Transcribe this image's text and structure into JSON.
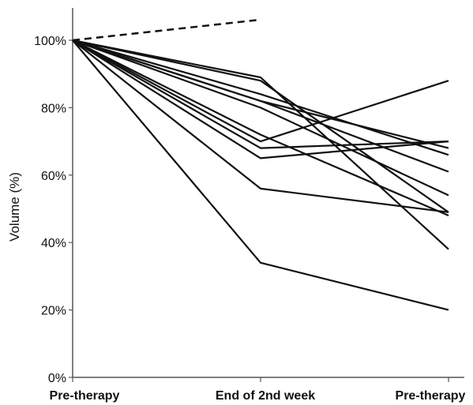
{
  "chart_data": {
    "type": "line",
    "ylabel": "Volume (%)",
    "xlabel": "",
    "categories": [
      "Pre-therapy",
      "End of 2nd week",
      "Pre-therapy"
    ],
    "ylim": [
      0,
      110
    ],
    "yticks": [
      0,
      20,
      40,
      60,
      80,
      100
    ],
    "ytick_labels": [
      "0%",
      "20%",
      "40%",
      "60%",
      "80%",
      "100%"
    ],
    "grid": false,
    "legend": "none",
    "line_color": "#111111",
    "series": [
      {
        "values": [
          100,
          89,
          38
        ]
      },
      {
        "values": [
          100,
          88,
          49
        ]
      },
      {
        "values": [
          100,
          84,
          66
        ]
      },
      {
        "values": [
          100,
          82,
          61
        ]
      },
      {
        "values": [
          100,
          82,
          68
        ]
      },
      {
        "values": [
          100,
          80,
          54
        ]
      },
      {
        "values": [
          100,
          72,
          48
        ]
      },
      {
        "values": [
          100,
          70,
          88
        ]
      },
      {
        "values": [
          100,
          68,
          70
        ]
      },
      {
        "values": [
          100,
          65,
          70
        ]
      },
      {
        "values": [
          100,
          56,
          49
        ]
      },
      {
        "values": [
          100,
          34,
          20
        ]
      },
      {
        "values": [
          100,
          106,
          null
        ],
        "style": "dashed"
      }
    ]
  }
}
